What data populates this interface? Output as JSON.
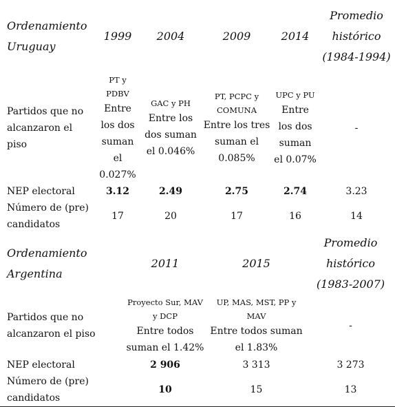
{
  "uruguay": {
    "header": [
      "Ordenamiento Uruguay",
      "1999",
      "2004",
      "2009",
      "2014",
      "Promedio histórico (1984-1994)"
    ],
    "rows": [
      {
        "label": "Partidos que no alcanzaron el piso",
        "cells": [
          {
            "note": "PT y PDBV",
            "text": "Entre los dos suman el 0.027%"
          },
          {
            "note": "GAC y PH",
            "text": "Entre los dos suman el 0.046%"
          },
          {
            "note": "PT, PCPC y COMUNA",
            "text": "Entre los tres suman el 0.085%"
          },
          {
            "note": "UPC y PU",
            "text": "Entre los dos suman el 0.07%"
          },
          "-"
        ]
      },
      {
        "label": "NEP electoral",
        "cells": [
          "3.12",
          "2.49",
          "2.75",
          "2.74",
          "3.23"
        ]
      },
      {
        "label": "Número de (pre) candidatos",
        "cells": [
          "17",
          "20",
          "17",
          "16",
          "14"
        ]
      }
    ]
  },
  "argentina": {
    "header": [
      "Ordenamiento Argentina",
      "2011",
      "2015",
      "Promedio histórico (1983-2007)"
    ],
    "rows": [
      {
        "label": "Partidos que no alcanzaron el piso",
        "cells": [
          {
            "note": "Proyecto Sur, MAV y DCP",
            "text": "Entre todos suman el 1.42%"
          },
          {
            "note": "UP, MAS, MST, PP y MAV",
            "text": "Entre todos suman el 1.83%"
          },
          "-"
        ]
      },
      {
        "label": "NEP electoral",
        "cells": [
          "2 906",
          "3 313",
          "3 273"
        ]
      },
      {
        "label": "Número de (pre) candidatos",
        "cells": [
          "10",
          "15",
          "13"
        ]
      }
    ]
  }
}
